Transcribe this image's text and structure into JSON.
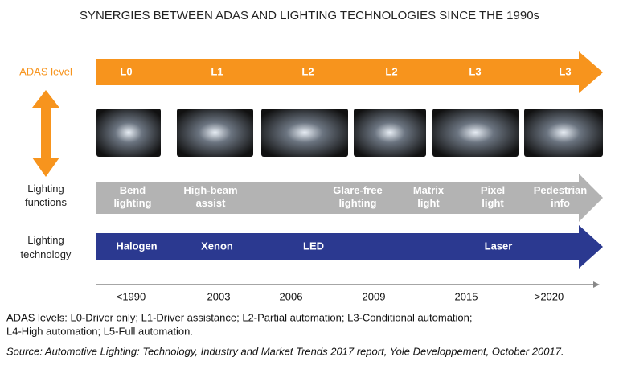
{
  "title": "SYNERGIES BETWEEN ADAS AND LIGHTING TECHNOLOGIES SINCE THE 1990s",
  "adas": {
    "label": "ADAS level",
    "levels": [
      "L0",
      "L1",
      "L2",
      "L2",
      "L3",
      "L3"
    ]
  },
  "functions": {
    "label": [
      "Lighting",
      "functions"
    ],
    "items": [
      [
        "Bend",
        "lighting"
      ],
      [
        "High-beam",
        "assist"
      ],
      [
        "Glare-free",
        "lighting"
      ],
      [
        "Matrix",
        "light"
      ],
      [
        "Pixel",
        "light"
      ],
      [
        "Pedestrian",
        "info"
      ]
    ]
  },
  "technology": {
    "label": [
      "Lighting",
      "technology"
    ],
    "items": [
      "Halogen",
      "Xenon",
      "LED",
      "Laser"
    ]
  },
  "timeline": [
    "<1990",
    "2003",
    "2006",
    "2009",
    "2015",
    ">2020"
  ],
  "notes": [
    "ADAS levels: L0-Driver only; L1-Driver assistance; L2-Partial automation; L3-Conditional automation;",
    "L4-High automation; L5-Full automation."
  ],
  "source": "Source: Automotive Lighting: Technology, Industry and Market Trends 2017 report, Yole Developpement, October 20017."
}
